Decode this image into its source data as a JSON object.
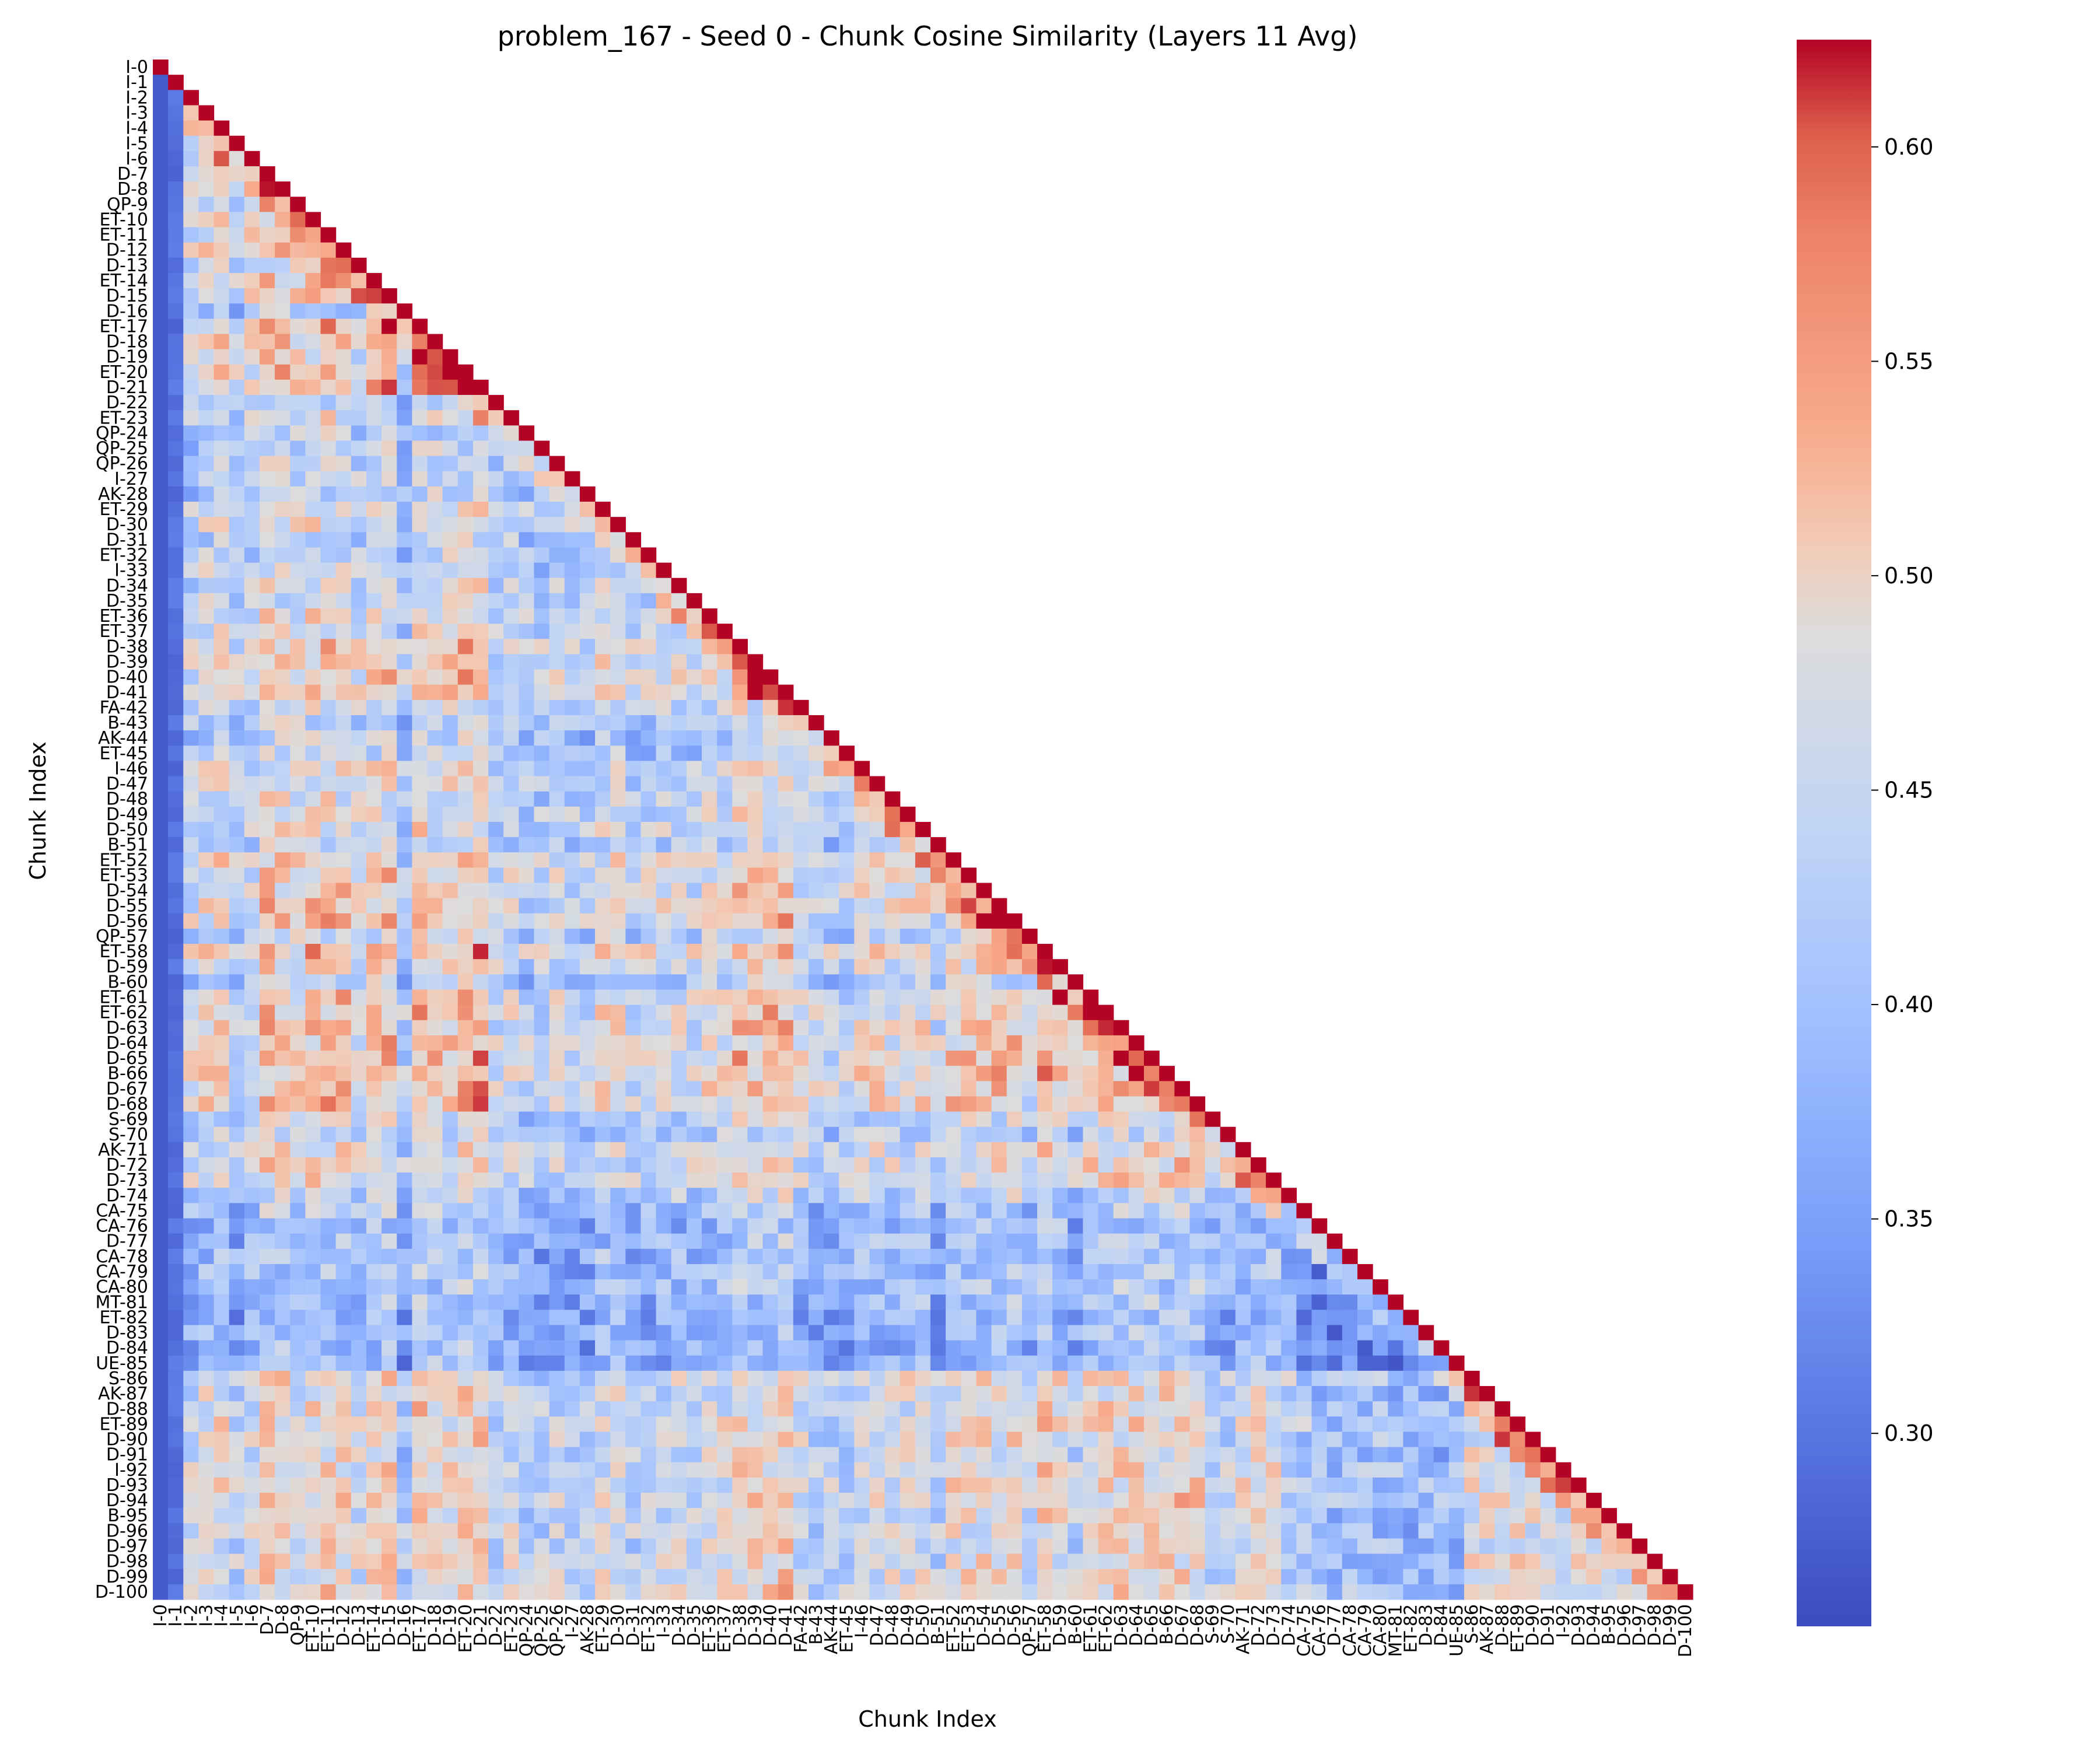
{
  "chart_data": {
    "type": "heatmap",
    "title": "problem_167 - Seed 0 - Chunk Cosine Similarity (Layers 11 Avg)",
    "xlabel": "Chunk Index",
    "ylabel": "Chunk Index",
    "mask": "upper-triangle",
    "colormap": "coolwarm",
    "vmin": 0.255,
    "vmax": 0.625,
    "colorbar_ticks": [
      "0.30",
      "0.35",
      "0.40",
      "0.45",
      "0.50",
      "0.55",
      "0.60"
    ],
    "colorbar_tick_values": [
      0.3,
      0.35,
      0.4,
      0.45,
      0.5,
      0.55,
      0.6
    ],
    "labels": [
      "I-0",
      "I-1",
      "I-2",
      "I-3",
      "I-4",
      "I-5",
      "I-6",
      "D-7",
      "D-8",
      "QP-9",
      "ET-10",
      "ET-11",
      "D-12",
      "D-13",
      "ET-14",
      "D-15",
      "D-16",
      "ET-17",
      "D-18",
      "D-19",
      "ET-20",
      "D-21",
      "D-22",
      "ET-23",
      "QP-24",
      "QP-25",
      "QP-26",
      "I-27",
      "AK-28",
      "ET-29",
      "D-30",
      "D-31",
      "ET-32",
      "I-33",
      "D-34",
      "D-35",
      "ET-36",
      "ET-37",
      "D-38",
      "D-39",
      "D-40",
      "D-41",
      "FA-42",
      "B-43",
      "AK-44",
      "ET-45",
      "I-46",
      "D-47",
      "D-48",
      "D-49",
      "D-50",
      "B-51",
      "ET-52",
      "ET-53",
      "D-54",
      "D-55",
      "D-56",
      "QP-57",
      "ET-58",
      "D-59",
      "B-60",
      "ET-61",
      "ET-62",
      "D-63",
      "D-64",
      "D-65",
      "B-66",
      "D-67",
      "D-68",
      "S-69",
      "S-70",
      "AK-71",
      "D-72",
      "D-73",
      "D-74",
      "CA-75",
      "CA-76",
      "D-77",
      "CA-78",
      "CA-79",
      "CA-80",
      "MT-81",
      "ET-82",
      "D-83",
      "D-84",
      "UE-85",
      "S-86",
      "AK-87",
      "D-88",
      "ET-89",
      "D-90",
      "D-91",
      "I-92",
      "D-93",
      "D-94",
      "B-95",
      "D-96",
      "D-97",
      "D-98",
      "D-99",
      "D-100"
    ],
    "row_means": [
      0.62,
      0.29,
      0.42,
      0.46,
      0.48,
      0.4,
      0.44,
      0.5,
      0.49,
      0.47,
      0.5,
      0.51,
      0.5,
      0.45,
      0.5,
      0.51,
      0.36,
      0.52,
      0.5,
      0.48,
      0.52,
      0.53,
      0.4,
      0.45,
      0.38,
      0.38,
      0.42,
      0.4,
      0.38,
      0.46,
      0.46,
      0.4,
      0.42,
      0.43,
      0.44,
      0.42,
      0.47,
      0.46,
      0.5,
      0.5,
      0.51,
      0.52,
      0.44,
      0.4,
      0.4,
      0.38,
      0.46,
      0.46,
      0.45,
      0.46,
      0.46,
      0.4,
      0.49,
      0.49,
      0.49,
      0.5,
      0.5,
      0.42,
      0.52,
      0.48,
      0.4,
      0.5,
      0.5,
      0.5,
      0.5,
      0.51,
      0.51,
      0.51,
      0.51,
      0.42,
      0.4,
      0.46,
      0.48,
      0.48,
      0.4,
      0.36,
      0.32,
      0.33,
      0.34,
      0.34,
      0.34,
      0.33,
      0.3,
      0.32,
      0.31,
      0.31,
      0.48,
      0.46,
      0.47,
      0.48,
      0.47,
      0.46,
      0.47,
      0.48,
      0.48,
      0.46,
      0.46,
      0.46,
      0.47,
      0.47,
      0.48
    ]
  }
}
